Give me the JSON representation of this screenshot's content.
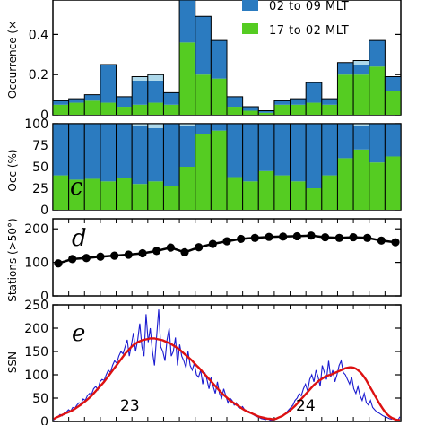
{
  "chart_data": [
    {
      "panel": "b",
      "type": "bar",
      "stacked": true,
      "ylabel": "Occurrence (×",
      "ylim": [
        0,
        0.75
      ],
      "yticks": [
        0.0,
        0.2,
        0.4,
        0.6
      ],
      "bins": 22,
      "series": [
        {
          "name": "17 to 02 MLT",
          "color": "#55cc22",
          "values": [
            0.05,
            0.06,
            0.07,
            0.06,
            0.04,
            0.05,
            0.06,
            0.05,
            0.36,
            0.2,
            0.18,
            0.04,
            0.02,
            0.01,
            0.05,
            0.05,
            0.06,
            0.05,
            0.2,
            0.2,
            0.24,
            0.12
          ]
        },
        {
          "name": "02 to 09 MLT",
          "color": "#2b7bc0",
          "values": [
            0.02,
            0.02,
            0.03,
            0.19,
            0.05,
            0.12,
            0.11,
            0.06,
            0.36,
            0.29,
            0.19,
            0.05,
            0.02,
            0.01,
            0.02,
            0.03,
            0.1,
            0.03,
            0.06,
            0.05,
            0.13,
            0.07
          ]
        },
        {
          "name": "",
          "color": "#add8ea",
          "values": [
            0,
            0,
            0,
            0,
            0,
            0.02,
            0.03,
            0,
            0.03,
            0,
            0,
            0,
            0,
            0,
            0,
            0,
            0,
            0,
            0,
            0.02,
            0,
            0
          ]
        }
      ]
    },
    {
      "panel": "c",
      "type": "bar",
      "stacked": true,
      "ylabel": "Occ (%)",
      "ylim": [
        0,
        100
      ],
      "yticks": [
        0,
        25,
        50,
        75,
        100
      ],
      "bins": 22,
      "series": [
        {
          "color": "#55cc22",
          "values": [
            40,
            35,
            36,
            33,
            37,
            30,
            33,
            28,
            50,
            88,
            92,
            38,
            33,
            45,
            40,
            33,
            25,
            40,
            60,
            70,
            55,
            62
          ]
        },
        {
          "color": "#2b7bc0",
          "values": [
            60,
            65,
            64,
            67,
            63,
            67,
            62,
            72,
            48,
            12,
            8,
            62,
            67,
            55,
            60,
            67,
            75,
            60,
            40,
            28,
            45,
            38
          ]
        },
        {
          "color": "#add8ea",
          "values": [
            0,
            0,
            0,
            0,
            0,
            3,
            5,
            0,
            2,
            0,
            0,
            0,
            0,
            0,
            0,
            0,
            0,
            0,
            0,
            2,
            0,
            0
          ]
        }
      ]
    },
    {
      "panel": "d",
      "type": "line",
      "ylabel": "Stations (>50°)",
      "ylim": [
        0,
        230
      ],
      "yticks": [
        0,
        100,
        200
      ],
      "x": [
        0,
        1,
        2,
        3,
        4,
        5,
        6,
        7,
        8,
        9,
        10,
        11,
        12,
        13,
        14,
        15,
        16,
        17,
        18,
        19,
        20,
        21,
        22,
        23,
        24
      ],
      "values": [
        97,
        110,
        113,
        117,
        120,
        123,
        127,
        134,
        144,
        130,
        145,
        155,
        163,
        170,
        173,
        176,
        177,
        178,
        180,
        175,
        173,
        175,
        173,
        165,
        160
      ]
    },
    {
      "panel": "e",
      "type": "line",
      "ylabel": "SSN",
      "ylim": [
        0,
        250
      ],
      "yticks": [
        0,
        50,
        100,
        150,
        200,
        250
      ],
      "series": [
        {
          "color": "#1a1ad0",
          "values": [
            3,
            8,
            10,
            15,
            12,
            18,
            20,
            25,
            22,
            30,
            28,
            35,
            40,
            38,
            48,
            45,
            55,
            60,
            58,
            70,
            75,
            68,
            85,
            90,
            88,
            100,
            110,
            105,
            120,
            130,
            125,
            140,
            150,
            145,
            160,
            175,
            140,
            165,
            190,
            150,
            175,
            210,
            160,
            140,
            230,
            170,
            200,
            150,
            120,
            180,
            240,
            160,
            150,
            130,
            175,
            200,
            140,
            150,
            180,
            120,
            165,
            140,
            130,
            115,
            150,
            120,
            110,
            125,
            100,
            95,
            110,
            80,
            105,
            90,
            70,
            95,
            75,
            60,
            85,
            60,
            50,
            70,
            55,
            40,
            50,
            45,
            35,
            40,
            30,
            28,
            32,
            25,
            20,
            22,
            18,
            15,
            12,
            10,
            8,
            6,
            5,
            4,
            6,
            3,
            2,
            4,
            5,
            8,
            10,
            12,
            15,
            20,
            25,
            30,
            35,
            45,
            50,
            60,
            55,
            70,
            80,
            65,
            90,
            100,
            85,
            110,
            95,
            75,
            120,
            105,
            90,
            130,
            95,
            110,
            85,
            100,
            120,
            130,
            105,
            100,
            90,
            80,
            95,
            70,
            60,
            75,
            55,
            45,
            60,
            40,
            35,
            45,
            30,
            25,
            20,
            18,
            15,
            12,
            10,
            8,
            6,
            5,
            7,
            4,
            3,
            10
          ]
        },
        {
          "color": "#dd1111",
          "values": [
            5,
            8,
            10,
            12,
            14,
            16,
            18,
            20,
            22,
            24,
            27,
            30,
            33,
            36,
            40,
            43,
            47,
            51,
            55,
            60,
            65,
            70,
            75,
            80,
            85,
            91,
            97,
            103,
            109,
            115,
            121,
            127,
            133,
            139,
            145,
            150,
            155,
            160,
            164,
            167,
            170,
            172,
            174,
            175,
            176,
            177,
            178,
            178,
            178,
            177,
            176,
            175,
            174,
            172,
            170,
            168,
            166,
            163,
            160,
            157,
            154,
            150,
            146,
            142,
            138,
            134,
            130,
            125,
            120,
            116,
            111,
            106,
            101,
            96,
            91,
            86,
            81,
            76,
            71,
            66,
            61,
            57,
            53,
            49,
            45,
            42,
            39,
            36,
            33,
            30,
            27,
            24,
            22,
            20,
            18,
            16,
            14,
            12,
            10,
            9,
            8,
            7,
            6,
            6,
            5,
            5,
            6,
            8,
            10,
            12,
            15,
            18,
            21,
            25,
            29,
            33,
            38,
            43,
            48,
            53,
            58,
            63,
            68,
            73,
            78,
            82,
            86,
            89,
            92,
            95,
            97,
            99,
            100,
            102,
            104,
            106,
            108,
            110,
            112,
            114,
            115,
            116,
            116,
            115,
            113,
            110,
            106,
            101,
            95,
            88,
            80,
            72,
            64,
            56,
            48,
            40,
            33,
            26,
            20,
            15,
            11,
            8,
            6,
            4,
            3,
            3
          ]
        }
      ]
    }
  ],
  "legend": {
    "items": [
      {
        "label": "02 to 09 MLT",
        "color": "#2b7bc0"
      },
      {
        "label": "17 to 02 MLT",
        "color": "#55cc22"
      }
    ]
  },
  "panel_letters": {
    "c": "c",
    "d": "d",
    "e": "e"
  },
  "cycle_labels": {
    "c23": "23",
    "c24": "24"
  }
}
